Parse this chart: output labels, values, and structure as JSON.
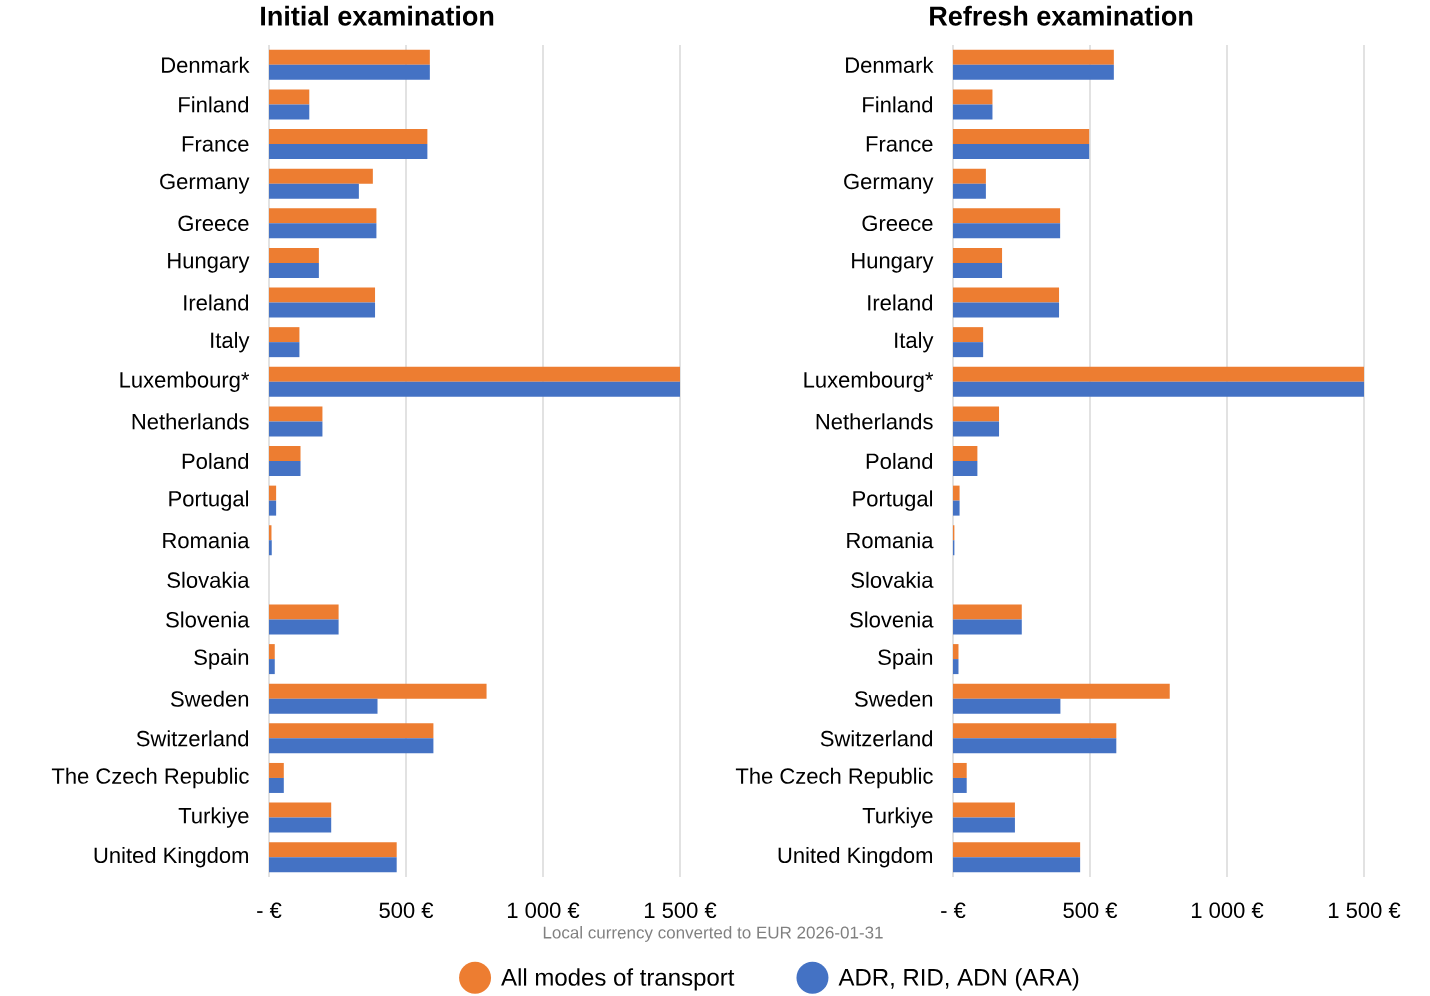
{
  "chart_data": [
    {
      "type": "bar",
      "orientation": "horizontal",
      "title": "Initial examination",
      "categories": [
        "Denmark",
        "Finland",
        "France",
        "Germany",
        "Greece",
        "Hungary",
        "Ireland",
        "Italy",
        "Luxembourg*",
        "Netherlands",
        "Poland",
        "Portugal",
        "Romania",
        "Slovakia",
        "Slovenia",
        "Spain",
        "Sweden",
        "Switzerland",
        "The Czech Republic",
        "Turkiye",
        "United Kingdom"
      ],
      "series": [
        {
          "name": "All modes of transport",
          "color": "#ed7d31",
          "values": [
            587,
            147,
            578,
            379,
            392,
            182,
            387,
            111,
            1500,
            195,
            115,
            26,
            9,
            0,
            254,
            21,
            794,
            600,
            54,
            227,
            466
          ]
        },
        {
          "name": "ADR, RID, ADN (ARA)",
          "color": "#4472c4",
          "values": [
            587,
            147,
            578,
            328,
            392,
            182,
            387,
            111,
            1500,
            195,
            115,
            26,
            10,
            0,
            254,
            21,
            396,
            600,
            54,
            227,
            466
          ]
        }
      ],
      "xlim": [
        0,
        1500
      ],
      "xticks": [
        {
          "value": 0,
          "label": "-  €"
        },
        {
          "value": 500,
          "label": "500 €"
        },
        {
          "value": 1000,
          "label": "1 000 €"
        },
        {
          "value": 1500,
          "label": "1 500 €"
        }
      ],
      "grid": "x",
      "legend": "bottom",
      "annotations": [
        "Local currency converted to EUR 2026-01-31"
      ]
    },
    {
      "type": "bar",
      "orientation": "horizontal",
      "title": "Refresh examination",
      "categories": [
        "Denmark",
        "Finland",
        "France",
        "Germany",
        "Greece",
        "Hungary",
        "Ireland",
        "Italy",
        "Luxembourg*",
        "Netherlands",
        "Poland",
        "Portugal",
        "Romania",
        "Slovakia",
        "Slovenia",
        "Spain",
        "Sweden",
        "Switzerland",
        "The Czech Republic",
        "Turkiye",
        "United Kingdom"
      ],
      "series": [
        {
          "color": "#ed7d31",
          "values": [
            587,
            144,
            497,
            120,
            391,
            179,
            387,
            110,
            1500,
            168,
            89,
            24,
            5,
            0,
            251,
            20,
            791,
            596,
            50,
            226,
            464
          ]
        },
        {
          "color": "#4472c4",
          "values": [
            587,
            144,
            497,
            120,
            391,
            179,
            387,
            110,
            1500,
            168,
            89,
            24,
            5,
            0,
            251,
            20,
            392,
            596,
            50,
            226,
            464
          ]
        }
      ],
      "xlim": [
        0,
        1500
      ],
      "xticks": [
        {
          "value": 0,
          "label": "-  €"
        },
        {
          "value": 500,
          "label": "500 €"
        },
        {
          "value": 1000,
          "label": "1 000 €"
        },
        {
          "value": 1500,
          "label": "1 500 €"
        }
      ],
      "grid": "x"
    }
  ]
}
